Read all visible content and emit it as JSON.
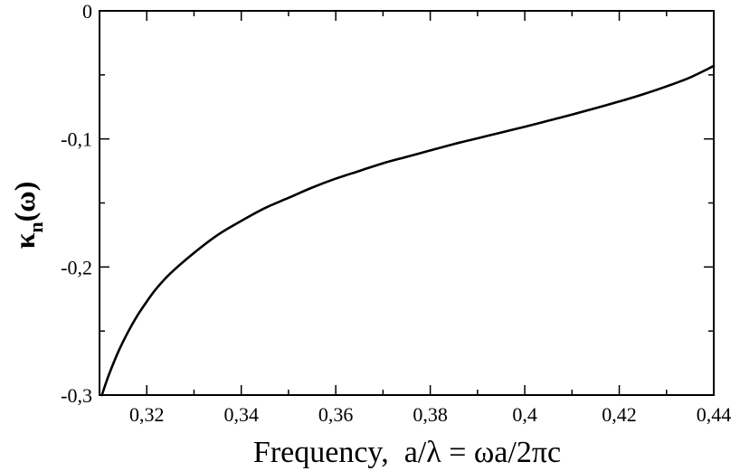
{
  "chart_data": {
    "type": "line",
    "xlabel": "Frequency,  a/λ = ωa/2πc",
    "ylabel": {
      "main": "κ",
      "subscript": "n",
      "suffix": "(ω)"
    },
    "xlim": [
      0.31,
      0.44
    ],
    "ylim": [
      -0.3,
      0
    ],
    "x_ticks": [
      0.32,
      0.34,
      0.36,
      0.38,
      0.4,
      0.42,
      0.44
    ],
    "x_tick_labels": [
      "0,32",
      "0,34",
      "0,36",
      "0,38",
      "0,4",
      "0,42",
      "0,44"
    ],
    "y_ticks": [
      -0.3,
      -0.2,
      -0.1,
      0
    ],
    "y_tick_labels": [
      "-0,3",
      "-0,2",
      "-0,1",
      "0"
    ],
    "x_minor_step": 0.01,
    "y_minor_step": 0.05,
    "grid": false,
    "series": [
      {
        "color": "#000000",
        "x": [
          0.3105,
          0.312,
          0.314,
          0.316,
          0.318,
          0.32,
          0.322,
          0.325,
          0.33,
          0.335,
          0.34,
          0.345,
          0.35,
          0.355,
          0.36,
          0.365,
          0.37,
          0.375,
          0.38,
          0.385,
          0.39,
          0.395,
          0.4,
          0.405,
          0.41,
          0.415,
          0.42,
          0.425,
          0.43,
          0.435,
          0.44
        ],
        "y": [
          -0.3,
          -0.284,
          -0.266,
          -0.251,
          -0.238,
          -0.227,
          -0.217,
          -0.205,
          -0.189,
          -0.175,
          -0.164,
          -0.154,
          -0.146,
          -0.138,
          -0.131,
          -0.125,
          -0.119,
          -0.114,
          -0.109,
          -0.104,
          -0.0995,
          -0.095,
          -0.0905,
          -0.0858,
          -0.081,
          -0.076,
          -0.0708,
          -0.0652,
          -0.059,
          -0.052,
          -0.043
        ]
      }
    ]
  }
}
